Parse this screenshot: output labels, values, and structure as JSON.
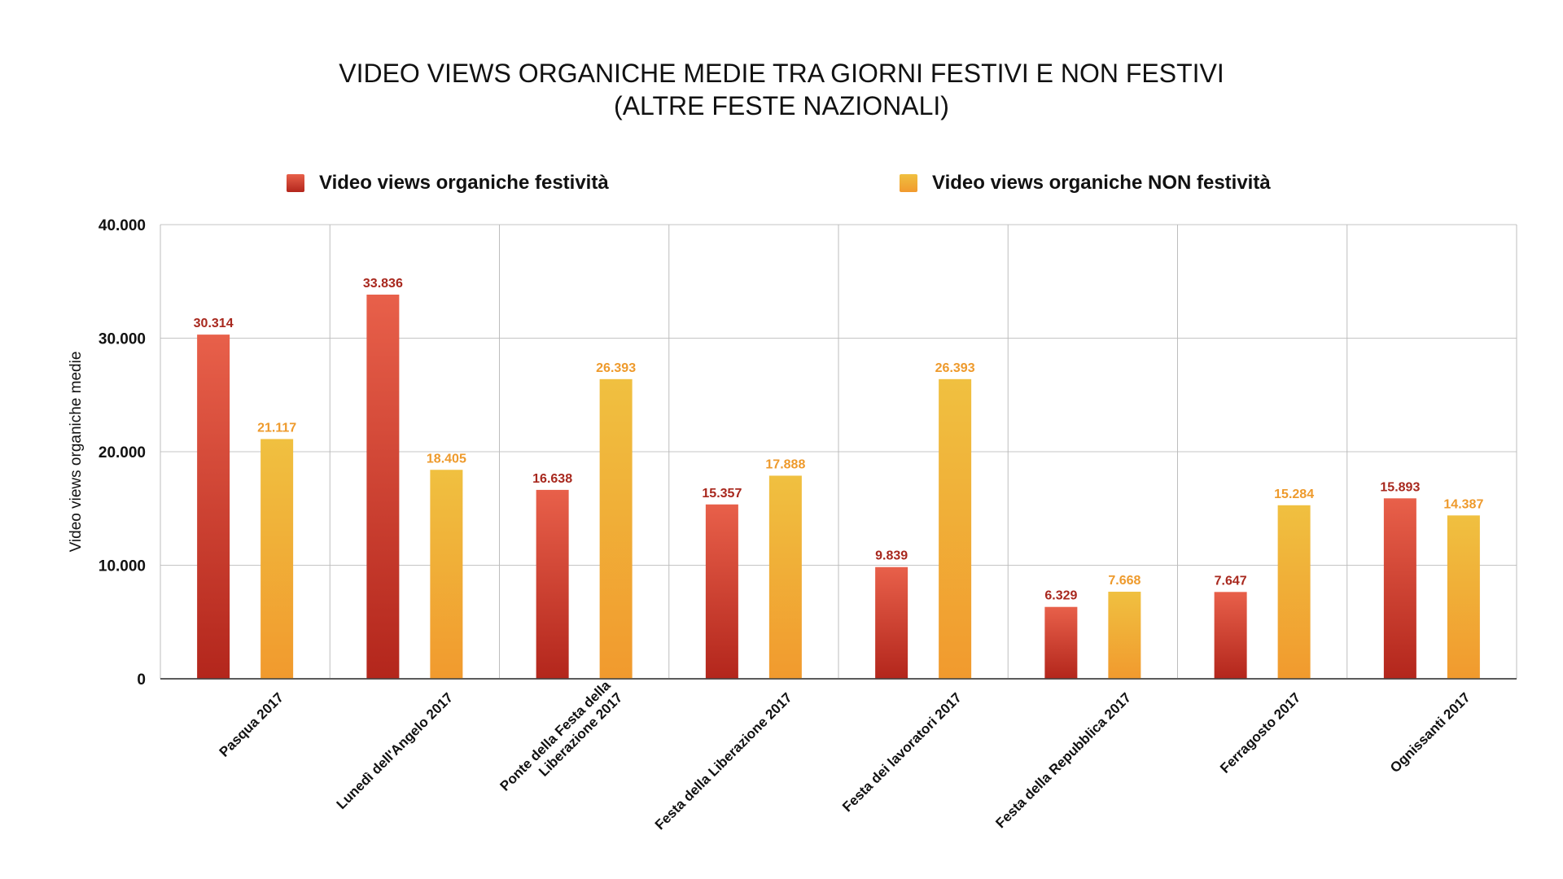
{
  "chart_data": {
    "type": "bar",
    "title": [
      "VIDEO VIEWS ORGANICHE MEDIE TRA GIORNI FESTIVI E NON FESTIVI",
      "(ALTRE FESTE NAZIONALI)"
    ],
    "ylabel": "Video views organiche medie",
    "xlabel": "",
    "ylim": [
      0,
      40000
    ],
    "yticks": [
      0,
      10000,
      20000,
      30000,
      40000
    ],
    "ytick_labels": [
      "0",
      "10.000",
      "20.000",
      "30.000",
      "40.000"
    ],
    "grid": true,
    "legend_position": "top",
    "categories": [
      [
        "Pasqua 2017"
      ],
      [
        "Lunedì dell'Angelo 2017"
      ],
      [
        "Ponte della Festa della",
        "Liberazione 2017"
      ],
      [
        "Festa della Liberazione 2017"
      ],
      [
        "Festa dei lavoratori 2017"
      ],
      [
        "Festa della Repubblica 2017"
      ],
      [
        "Ferragosto 2017"
      ],
      [
        "Ognissanti 2017"
      ]
    ],
    "series": [
      {
        "name": "Video views organiche festività",
        "values": [
          30314,
          33836,
          16638,
          15357,
          9839,
          6329,
          7647,
          15893
        ],
        "labels": [
          "30.314",
          "33.836",
          "16.638",
          "15.357",
          "9.839",
          "6.329",
          "7.647",
          "15.893"
        ],
        "color_top": "#e8604a",
        "color_bottom": "#b3261c",
        "label_color": "#a8281e"
      },
      {
        "name": "Video views organiche NON festività",
        "values": [
          21117,
          18405,
          26393,
          17888,
          26393,
          7668,
          15284,
          14387
        ],
        "labels": [
          "21.117",
          "18.405",
          "26.393",
          "17.888",
          "26.393",
          "7.668",
          "15.284",
          "14.387"
        ],
        "color_top": "#f0c040",
        "color_bottom": "#f19a2e",
        "label_color": "#ee9a2c"
      }
    ]
  }
}
